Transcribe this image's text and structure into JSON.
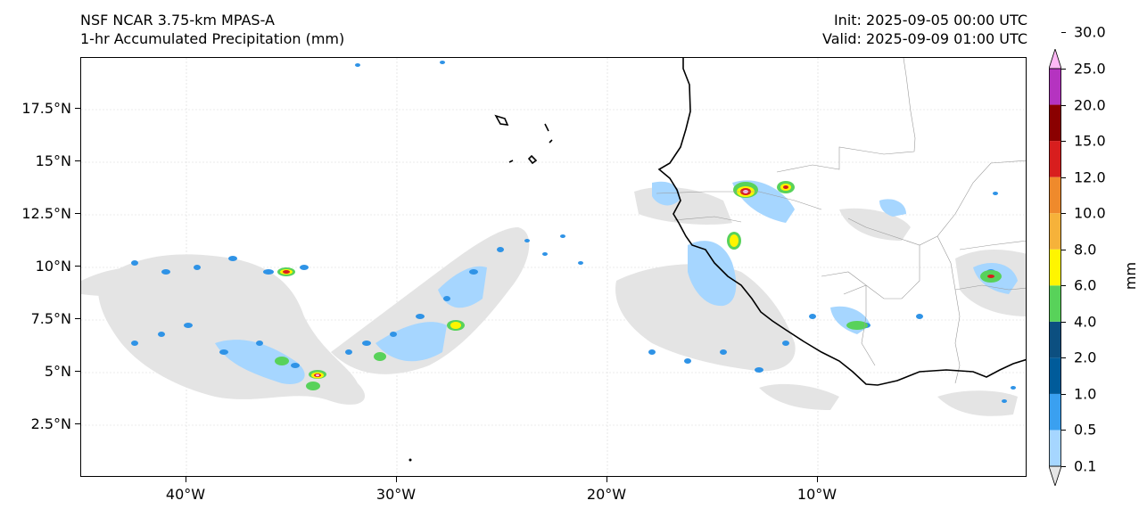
{
  "header": {
    "model": "NSF NCAR 3.75-km MPAS-A",
    "field": "1-hr Accumulated Precipitation (mm)",
    "init": "Init: 2025-09-05 00:00 UTC",
    "valid": "Valid: 2025-09-09 01:00 UTC"
  },
  "axes": {
    "lat_ticks": [
      "17.5°N",
      "15°N",
      "12.5°N",
      "10°N",
      "7.5°N",
      "5°N",
      "2.5°N"
    ],
    "lon_ticks": [
      "40°W",
      "30°W",
      "20°W",
      "10°W"
    ],
    "lat_range": [
      0,
      20
    ],
    "lon_range": [
      -45,
      0
    ]
  },
  "colorbar": {
    "title": "mm",
    "levels": [
      "0.1",
      "0.5",
      "1.0",
      "2.0",
      "4.0",
      "6.0",
      "8.0",
      "10.0",
      "12.0",
      "15.0",
      "20.0",
      "25.0",
      "30.0"
    ],
    "colors": [
      "#e6e6e6",
      "#a6d6ff",
      "#3aa0f0",
      "#005b9a",
      "#0c4f80",
      "#58d25a",
      "#fff500",
      "#f6b23a",
      "#ef8a2c",
      "#d81e1e",
      "#8a0000",
      "#b533c0",
      "#ffb9f6"
    ]
  }
}
